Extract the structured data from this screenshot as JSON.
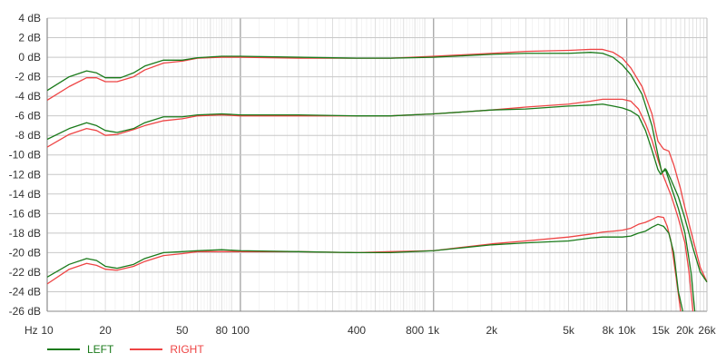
{
  "chart_data": {
    "type": "line",
    "x_scale": "log",
    "x_unit_label": "Hz",
    "y_unit": "dB",
    "xlim": [
      10,
      26000
    ],
    "ylim": [
      -26,
      4
    ],
    "grid": true,
    "legend_position": "bottom-left",
    "x_tick_labels": [
      {
        "value": 10,
        "label": "10"
      },
      {
        "value": 20,
        "label": "20"
      },
      {
        "value": 50,
        "label": "50"
      },
      {
        "value": 80,
        "label": "80"
      },
      {
        "value": 100,
        "label": "100"
      },
      {
        "value": 400,
        "label": "400"
      },
      {
        "value": 800,
        "label": "800"
      },
      {
        "value": 1000,
        "label": "1k"
      },
      {
        "value": 2000,
        "label": "2k"
      },
      {
        "value": 5000,
        "label": "5k"
      },
      {
        "value": 8000,
        "label": "8k"
      },
      {
        "value": 10000,
        "label": "10k"
      },
      {
        "value": 15000,
        "label": "15k"
      },
      {
        "value": 20000,
        "label": "20k"
      },
      {
        "value": 26000,
        "label": "26k"
      }
    ],
    "y_ticks": [
      4,
      2,
      0,
      -2,
      -4,
      -6,
      -8,
      -10,
      -12,
      -14,
      -16,
      -18,
      -20,
      -22,
      -24,
      -26
    ],
    "y_tick_labels": [
      "4 dB",
      "2 dB",
      "0 dB",
      "-2 dB",
      "-4 dB",
      "-6 dB",
      "-8 dB",
      "-10 dB",
      "-12 dB",
      "-14 dB",
      "-16 dB",
      "-18 dB",
      "-20 dB",
      "-22 dB",
      "-24 dB",
      "-26 dB"
    ],
    "colors": {
      "LEFT": "#1a7a1a",
      "RIGHT": "#ee4444"
    },
    "series": [
      {
        "name": "LEFT",
        "level": "0 dB",
        "points": [
          [
            10,
            -3.4
          ],
          [
            13,
            -2.0
          ],
          [
            16,
            -1.4
          ],
          [
            18,
            -1.6
          ],
          [
            20,
            -2.1
          ],
          [
            24,
            -2.1
          ],
          [
            28,
            -1.6
          ],
          [
            32,
            -0.9
          ],
          [
            40,
            -0.3
          ],
          [
            50,
            -0.3
          ],
          [
            60,
            -0.05
          ],
          [
            80,
            0.1
          ],
          [
            100,
            0.1
          ],
          [
            200,
            0.0
          ],
          [
            400,
            -0.1
          ],
          [
            600,
            -0.1
          ],
          [
            1000,
            0.0
          ],
          [
            2000,
            0.3
          ],
          [
            3000,
            0.4
          ],
          [
            5000,
            0.4
          ],
          [
            6500,
            0.5
          ],
          [
            7500,
            0.4
          ],
          [
            8500,
            0.0
          ],
          [
            9500,
            -0.8
          ],
          [
            10500,
            -1.8
          ],
          [
            12000,
            -3.8
          ],
          [
            13500,
            -7.0
          ],
          [
            14500,
            -10.0
          ],
          [
            15200,
            -11.8
          ],
          [
            16000,
            -11.5
          ],
          [
            17000,
            -12.6
          ],
          [
            18500,
            -14.3
          ],
          [
            20000,
            -16.5
          ],
          [
            22000,
            -19.5
          ],
          [
            24000,
            -22.0
          ],
          [
            26000,
            -23.0
          ]
        ]
      },
      {
        "name": "RIGHT",
        "level": "0 dB",
        "points": [
          [
            10,
            -4.4
          ],
          [
            13,
            -3.0
          ],
          [
            16,
            -2.1
          ],
          [
            18,
            -2.1
          ],
          [
            20,
            -2.5
          ],
          [
            23,
            -2.5
          ],
          [
            28,
            -2.0
          ],
          [
            32,
            -1.3
          ],
          [
            40,
            -0.6
          ],
          [
            50,
            -0.4
          ],
          [
            60,
            -0.1
          ],
          [
            80,
            0.0
          ],
          [
            100,
            0.0
          ],
          [
            200,
            -0.1
          ],
          [
            400,
            -0.1
          ],
          [
            600,
            -0.1
          ],
          [
            1000,
            0.1
          ],
          [
            2000,
            0.4
          ],
          [
            3000,
            0.6
          ],
          [
            5000,
            0.7
          ],
          [
            6500,
            0.8
          ],
          [
            7500,
            0.8
          ],
          [
            8500,
            0.5
          ],
          [
            9500,
            -0.1
          ],
          [
            10500,
            -1.1
          ],
          [
            12000,
            -3.0
          ],
          [
            13500,
            -5.8
          ],
          [
            14500,
            -8.6
          ],
          [
            15500,
            -9.4
          ],
          [
            16500,
            -9.6
          ],
          [
            17500,
            -11.0
          ],
          [
            19000,
            -13.5
          ],
          [
            20000,
            -15.4
          ],
          [
            22000,
            -18.6
          ],
          [
            24000,
            -21.5
          ],
          [
            26000,
            -23.0
          ]
        ]
      },
      {
        "name": "LEFT",
        "level": "-6 dB",
        "points": [
          [
            10,
            -8.4
          ],
          [
            13,
            -7.3
          ],
          [
            16,
            -6.7
          ],
          [
            18,
            -7.0
          ],
          [
            20,
            -7.5
          ],
          [
            23,
            -7.7
          ],
          [
            28,
            -7.3
          ],
          [
            32,
            -6.7
          ],
          [
            40,
            -6.1
          ],
          [
            50,
            -6.1
          ],
          [
            60,
            -5.9
          ],
          [
            80,
            -5.8
          ],
          [
            100,
            -5.9
          ],
          [
            200,
            -5.9
          ],
          [
            400,
            -6.0
          ],
          [
            600,
            -6.0
          ],
          [
            1000,
            -5.8
          ],
          [
            2000,
            -5.4
          ],
          [
            3000,
            -5.3
          ],
          [
            5000,
            -5.0
          ],
          [
            6500,
            -4.9
          ],
          [
            7500,
            -4.8
          ],
          [
            8500,
            -5.0
          ],
          [
            9500,
            -5.2
          ],
          [
            10500,
            -5.5
          ],
          [
            11500,
            -6.0
          ],
          [
            12500,
            -7.5
          ],
          [
            13500,
            -9.5
          ],
          [
            14500,
            -11.5
          ],
          [
            15000,
            -12.0
          ],
          [
            15800,
            -11.4
          ],
          [
            17000,
            -13.3
          ],
          [
            18500,
            -15.5
          ],
          [
            20000,
            -18.0
          ],
          [
            21500,
            -22.0
          ],
          [
            22500,
            -26.0
          ]
        ]
      },
      {
        "name": "RIGHT",
        "level": "-6 dB",
        "points": [
          [
            10,
            -9.2
          ],
          [
            13,
            -7.9
          ],
          [
            16,
            -7.3
          ],
          [
            18,
            -7.5
          ],
          [
            20,
            -8.0
          ],
          [
            23,
            -7.9
          ],
          [
            28,
            -7.4
          ],
          [
            32,
            -7.0
          ],
          [
            40,
            -6.5
          ],
          [
            50,
            -6.3
          ],
          [
            60,
            -6.0
          ],
          [
            80,
            -5.9
          ],
          [
            100,
            -6.0
          ],
          [
            200,
            -6.0
          ],
          [
            400,
            -6.0
          ],
          [
            600,
            -6.0
          ],
          [
            1000,
            -5.8
          ],
          [
            2000,
            -5.4
          ],
          [
            3000,
            -5.1
          ],
          [
            5000,
            -4.8
          ],
          [
            6500,
            -4.5
          ],
          [
            7500,
            -4.3
          ],
          [
            8500,
            -4.3
          ],
          [
            9500,
            -4.3
          ],
          [
            10500,
            -4.5
          ],
          [
            11500,
            -5.3
          ],
          [
            12500,
            -6.8
          ],
          [
            13500,
            -8.5
          ],
          [
            14500,
            -10.5
          ],
          [
            15500,
            -12.2
          ],
          [
            17000,
            -14.2
          ],
          [
            18500,
            -16.5
          ],
          [
            20000,
            -19.0
          ],
          [
            21000,
            -22.0
          ],
          [
            22000,
            -26.0
          ]
        ]
      },
      {
        "name": "LEFT",
        "level": "-20 dB",
        "points": [
          [
            10,
            -22.5
          ],
          [
            13,
            -21.2
          ],
          [
            16,
            -20.6
          ],
          [
            18,
            -20.8
          ],
          [
            20,
            -21.4
          ],
          [
            23,
            -21.6
          ],
          [
            28,
            -21.2
          ],
          [
            32,
            -20.6
          ],
          [
            40,
            -20.0
          ],
          [
            50,
            -19.9
          ],
          [
            60,
            -19.8
          ],
          [
            80,
            -19.7
          ],
          [
            100,
            -19.8
          ],
          [
            200,
            -19.9
          ],
          [
            400,
            -20.0
          ],
          [
            600,
            -20.0
          ],
          [
            1000,
            -19.8
          ],
          [
            2000,
            -19.2
          ],
          [
            3000,
            -19.0
          ],
          [
            5000,
            -18.8
          ],
          [
            6500,
            -18.5
          ],
          [
            7500,
            -18.4
          ],
          [
            8500,
            -18.4
          ],
          [
            9500,
            -18.4
          ],
          [
            10500,
            -18.3
          ],
          [
            11500,
            -18.0
          ],
          [
            12500,
            -17.8
          ],
          [
            13500,
            -17.4
          ],
          [
            14500,
            -17.1
          ],
          [
            15500,
            -17.3
          ],
          [
            16500,
            -18.0
          ],
          [
            17500,
            -20.0
          ],
          [
            18500,
            -24.0
          ],
          [
            19500,
            -26.0
          ]
        ]
      },
      {
        "name": "RIGHT",
        "level": "-20 dB",
        "points": [
          [
            10,
            -23.2
          ],
          [
            13,
            -21.7
          ],
          [
            16,
            -21.1
          ],
          [
            18,
            -21.3
          ],
          [
            20,
            -21.7
          ],
          [
            23,
            -21.8
          ],
          [
            28,
            -21.4
          ],
          [
            32,
            -20.9
          ],
          [
            40,
            -20.3
          ],
          [
            50,
            -20.1
          ],
          [
            60,
            -19.9
          ],
          [
            80,
            -19.9
          ],
          [
            100,
            -19.9
          ],
          [
            200,
            -19.9
          ],
          [
            400,
            -20.0
          ],
          [
            600,
            -19.9
          ],
          [
            1000,
            -19.8
          ],
          [
            2000,
            -19.1
          ],
          [
            3000,
            -18.8
          ],
          [
            5000,
            -18.4
          ],
          [
            6500,
            -18.1
          ],
          [
            7500,
            -17.9
          ],
          [
            8500,
            -17.8
          ],
          [
            9500,
            -17.7
          ],
          [
            10500,
            -17.5
          ],
          [
            11500,
            -17.1
          ],
          [
            12500,
            -16.9
          ],
          [
            13500,
            -16.6
          ],
          [
            14500,
            -16.3
          ],
          [
            15500,
            -16.4
          ],
          [
            16200,
            -17.3
          ],
          [
            17000,
            -19.0
          ],
          [
            18000,
            -22.5
          ],
          [
            19000,
            -26.0
          ]
        ]
      }
    ]
  },
  "legend": [
    {
      "label": "LEFT",
      "color": "#1a7a1a"
    },
    {
      "label": "RIGHT",
      "color": "#ee4444"
    }
  ]
}
